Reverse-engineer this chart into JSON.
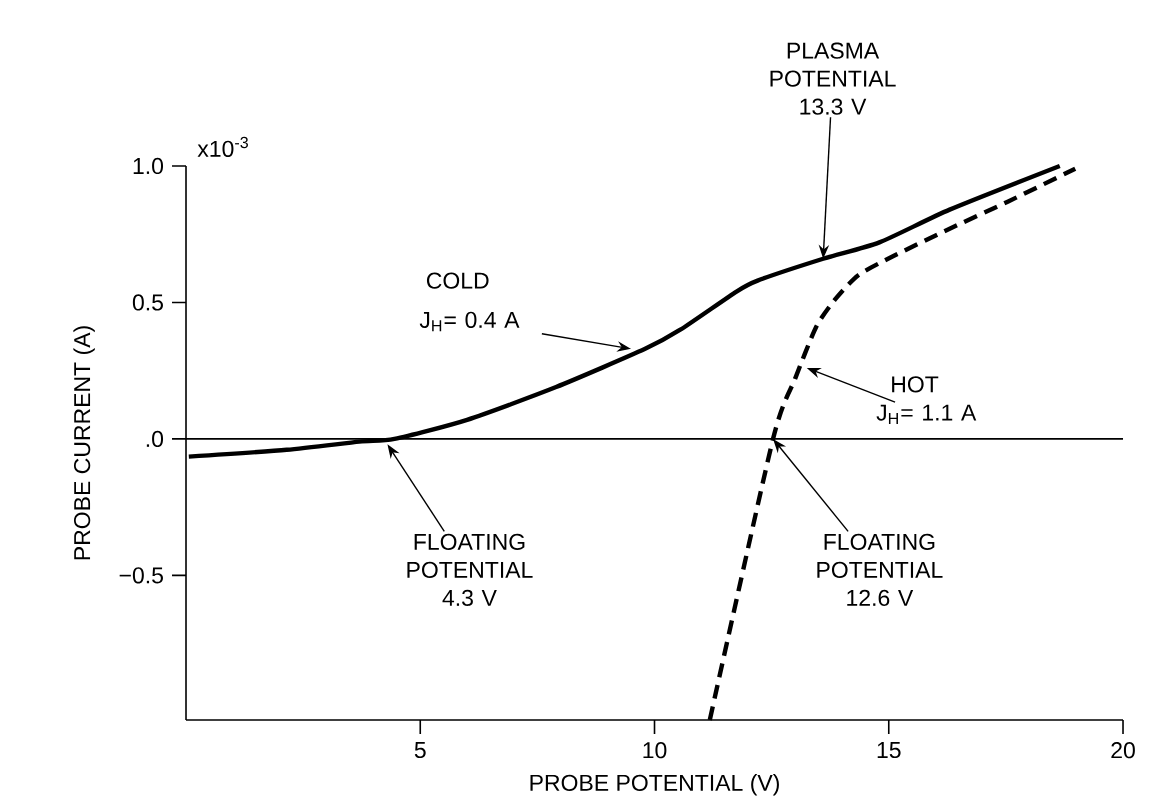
{
  "chart_data": {
    "type": "line",
    "xlabel": "PROBE POTENTIAL (V)",
    "ylabel": "PROBE CURRENT (A)",
    "xlim": [
      0,
      20
    ],
    "xticks": [
      5,
      10,
      15,
      20
    ],
    "ylim": [
      -1.03,
      1.0
    ],
    "yticks": [
      {
        "value": 1,
        "label": "1.0"
      },
      0.5,
      {
        "value": 0,
        "label": ".0"
      },
      {
        "value": -0.5,
        "label": "−0.5"
      }
    ],
    "series": [
      {
        "color": "#000000",
        "line_style": "solid",
        "x": [
          0.06,
          2.15,
          3.7,
          4.45,
          6.0,
          7.9,
          9.8,
          10.55,
          11.75,
          12.2,
          13.6,
          14.8,
          16.3,
          18.65
        ],
        "values": [
          -0.065,
          -0.04,
          -0.01,
          0.0,
          0.07,
          0.19,
          0.33,
          0.4,
          0.54,
          0.58,
          0.66,
          0.72,
          0.84,
          1.0
        ]
      },
      {
        "color": "#000000",
        "line_style": "dashed",
        "x": [
          11.18,
          12.53,
          13.0,
          13.45,
          13.85,
          14.35,
          15.1,
          16.3,
          17.55,
          18.98
        ],
        "values": [
          -1.03,
          0.0,
          0.22,
          0.41,
          0.51,
          0.6,
          0.67,
          0.77,
          0.87,
          0.99
        ]
      }
    ],
    "ref_lines": [
      {
        "axis": "y",
        "value": 0
      }
    ],
    "annotations": [
      "x10$^{-3}$",
      {
        "text": "PLASMA POTENTIAL 13.3 V",
        "x": 13.6,
        "y": 0.66
      },
      "COLD",
      {
        "text": "J$_{H}$= 0.4 A",
        "x": 9.5,
        "y": 0.33
      },
      "HOT",
      {
        "text": "J$_{H}$= 1.1 A",
        "x": 13.25,
        "y": 0.26
      },
      {
        "text": "FLOATING POTENTIAL 4.3 V",
        "x": 4.3,
        "y": -0.02
      },
      {
        "text": "FLOATING POTENTIAL 12.6 V",
        "x": 12.53,
        "y": 0.0
      }
    ]
  }
}
